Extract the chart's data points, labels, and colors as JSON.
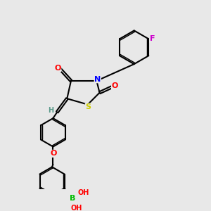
{
  "bg_color": "#e8e8e8",
  "bond_color": "#000000",
  "atom_colors": {
    "O": "#ff0000",
    "N": "#0000ff",
    "S": "#cccc00",
    "F": "#cc00cc",
    "B": "#00bb00",
    "H": "#666666",
    "C": "#000000"
  },
  "font_size": 8,
  "line_width": 1.5
}
